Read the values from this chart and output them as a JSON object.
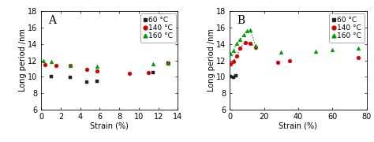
{
  "panel_A": {
    "label": "A",
    "xlabel": "Strain (%)",
    "ylabel": "Long period /nm",
    "xlim": [
      0,
      14
    ],
    "ylim": [
      6,
      18
    ],
    "yticks": [
      6,
      8,
      10,
      12,
      14,
      16,
      18
    ],
    "xticks": [
      0,
      2,
      4,
      6,
      8,
      10,
      12,
      14
    ],
    "series": [
      {
        "label": "60 °C",
        "color": "#222222",
        "marker": "s",
        "x": [
          1.0,
          3.0,
          4.7,
          5.7,
          11.5,
          13.0
        ],
        "y": [
          10.0,
          9.9,
          9.3,
          9.4,
          10.5,
          11.7
        ]
      },
      {
        "label": "140 °C",
        "color": "#cc0000",
        "marker": "o",
        "x": [
          0.4,
          1.5,
          3.0,
          4.7,
          5.7,
          9.0,
          11.0,
          13.0
        ],
        "y": [
          11.5,
          11.4,
          11.4,
          10.9,
          10.7,
          10.4,
          10.5,
          11.7
        ]
      },
      {
        "label": "160 °C",
        "color": "#009900",
        "marker": "^",
        "x": [
          0.2,
          1.0,
          3.0,
          5.7,
          11.5,
          13.0
        ],
        "y": [
          12.0,
          11.9,
          11.4,
          11.3,
          11.6,
          11.7
        ]
      }
    ]
  },
  "panel_B": {
    "label": "B",
    "xlabel": "Strain (%)",
    "ylabel": "Long period /nm",
    "xlim": [
      0,
      80
    ],
    "ylim": [
      6,
      18
    ],
    "yticks": [
      6,
      8,
      10,
      12,
      14,
      16,
      18
    ],
    "xticks": [
      0,
      20,
      40,
      60,
      80
    ],
    "series": [
      {
        "label": "60 °C",
        "color": "#222222",
        "marker": "s",
        "x": [
          0.5,
          2.0,
          3.5
        ],
        "y": [
          10.0,
          9.9,
          10.1
        ]
      },
      {
        "label": "140 °C",
        "color": "#cc0000",
        "marker": "o",
        "x": [
          0.5,
          2.0,
          4.0,
          6.0,
          9.0,
          12.0,
          15.0,
          28.0,
          35.0,
          75.0
        ],
        "y": [
          11.6,
          11.9,
          12.5,
          13.5,
          14.2,
          14.1,
          13.6,
          11.8,
          12.0,
          12.3
        ]
      },
      {
        "label": "160 °C",
        "color": "#009900",
        "marker": "^",
        "x": [
          0.5,
          2.0,
          4.0,
          6.0,
          8.0,
          10.0,
          12.0,
          15.0,
          30.0,
          50.0,
          60.0,
          75.0
        ],
        "y": [
          12.8,
          13.2,
          14.1,
          14.6,
          15.1,
          15.6,
          15.7,
          13.8,
          13.0,
          13.1,
          13.3,
          13.5
        ]
      }
    ],
    "dotted_series": [
      {
        "color": "#cc0000",
        "x": [
          0.5,
          2.0,
          4.0,
          6.0,
          9.0,
          12.0,
          15.0
        ],
        "y": [
          11.6,
          11.9,
          12.5,
          13.5,
          14.2,
          14.1,
          13.6
        ]
      },
      {
        "color": "#009900",
        "x": [
          0.5,
          2.0,
          4.0,
          6.0,
          8.0,
          10.0,
          12.0,
          15.0
        ],
        "y": [
          12.8,
          13.2,
          14.1,
          14.6,
          15.1,
          15.6,
          15.7,
          13.8
        ]
      }
    ]
  },
  "legend": {
    "labels": [
      "60 °C",
      "140 °C",
      "160 °C"
    ],
    "colors": [
      "#222222",
      "#cc0000",
      "#009900"
    ],
    "markers": [
      "s",
      "o",
      "^"
    ]
  },
  "bg_color": "#ffffff",
  "fontsize": 7,
  "marker_size": 3.5
}
